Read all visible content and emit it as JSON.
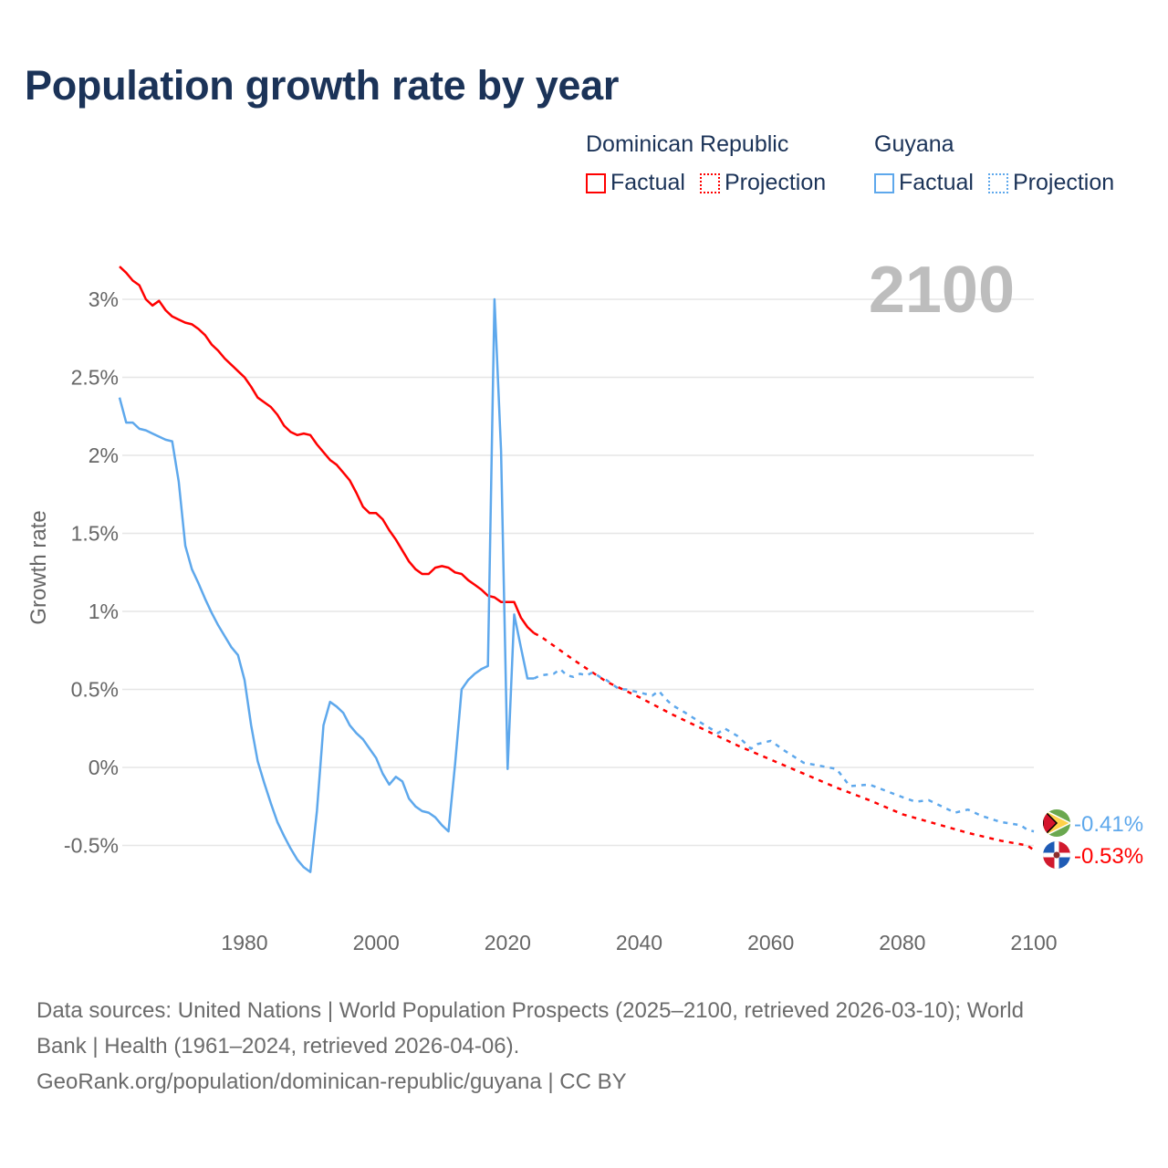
{
  "title": "Population growth rate by year",
  "legend": {
    "groups": [
      {
        "name": "Dominican Republic",
        "color": "#ff0000",
        "factual_label": "Factual",
        "projection_label": "Projection"
      },
      {
        "name": "Guyana",
        "color": "#5ea8ec",
        "factual_label": "Factual",
        "projection_label": "Projection"
      }
    ]
  },
  "year_display": "2100",
  "footer": {
    "line1": "Data sources: United Nations | World Population Prospects (2025–2100, retrieved 2026-03-10); World",
    "line2": "Bank | Health (1961–2024, retrieved 2026-04-06).",
    "line3": "GeoRank.org/population/dominican-republic/guyana | CC BY"
  },
  "chart_data": {
    "type": "line",
    "title": "Population growth rate by year",
    "xlabel": "",
    "ylabel": "Growth rate",
    "xlim": [
      1961,
      2100
    ],
    "ylim": [
      -0.9,
      3.3
    ],
    "grid": true,
    "x_ticks": [
      "1980",
      "2000",
      "2020",
      "2040",
      "2060",
      "2080",
      "2100"
    ],
    "x_tick_values": [
      1980,
      2000,
      2020,
      2040,
      2060,
      2080,
      2100
    ],
    "y_ticks": [
      "-0.5%",
      "0%",
      "0.5%",
      "1%",
      "1.5%",
      "2%",
      "2.5%",
      "3%"
    ],
    "y_tick_values": [
      -0.5,
      0,
      0.5,
      1,
      1.5,
      2,
      2.5,
      3
    ],
    "series": [
      {
        "name": "Dominican Republic",
        "kind": "Factual",
        "color": "#ff0000",
        "x": [
          1961,
          1962,
          1963,
          1964,
          1965,
          1966,
          1967,
          1968,
          1969,
          1970,
          1971,
          1972,
          1973,
          1974,
          1975,
          1976,
          1977,
          1978,
          1979,
          1980,
          1981,
          1982,
          1983,
          1984,
          1985,
          1986,
          1987,
          1988,
          1989,
          1990,
          1991,
          1992,
          1993,
          1994,
          1995,
          1996,
          1997,
          1998,
          1999,
          2000,
          2001,
          2002,
          2003,
          2004,
          2005,
          2006,
          2007,
          2008,
          2009,
          2010,
          2011,
          2012,
          2013,
          2014,
          2015,
          2016,
          2017,
          2018,
          2019,
          2020,
          2021,
          2022,
          2023,
          2024
        ],
        "y": [
          3.21,
          3.17,
          3.12,
          3.09,
          3.0,
          2.96,
          2.99,
          2.93,
          2.89,
          2.87,
          2.85,
          2.84,
          2.81,
          2.77,
          2.71,
          2.67,
          2.62,
          2.58,
          2.54,
          2.5,
          2.44,
          2.37,
          2.34,
          2.31,
          2.26,
          2.19,
          2.15,
          2.13,
          2.14,
          2.13,
          2.07,
          2.02,
          1.97,
          1.94,
          1.89,
          1.84,
          1.76,
          1.67,
          1.63,
          1.63,
          1.59,
          1.52,
          1.46,
          1.39,
          1.32,
          1.27,
          1.24,
          1.24,
          1.28,
          1.29,
          1.28,
          1.25,
          1.24,
          1.2,
          1.17,
          1.14,
          1.1,
          1.09,
          1.06,
          1.06,
          1.06,
          0.96,
          0.9,
          0.86
        ]
      },
      {
        "name": "Dominican Republic",
        "kind": "Projection",
        "color": "#ff0000",
        "x": [
          2024,
          2025,
          2030,
          2035,
          2040,
          2045,
          2050,
          2055,
          2060,
          2065,
          2070,
          2075,
          2080,
          2085,
          2090,
          2095,
          2099,
          2100
        ],
        "y": [
          0.86,
          0.84,
          0.69,
          0.55,
          0.45,
          0.34,
          0.24,
          0.14,
          0.05,
          -0.04,
          -0.13,
          -0.21,
          -0.3,
          -0.36,
          -0.42,
          -0.47,
          -0.5,
          -0.53
        ]
      },
      {
        "name": "Guyana",
        "kind": "Factual",
        "color": "#5ea8ec",
        "x": [
          1961,
          1962,
          1963,
          1964,
          1965,
          1966,
          1967,
          1968,
          1969,
          1970,
          1971,
          1972,
          1973,
          1974,
          1975,
          1976,
          1977,
          1978,
          1979,
          1980,
          1981,
          1982,
          1983,
          1984,
          1985,
          1986,
          1987,
          1988,
          1989,
          1990,
          1991,
          1992,
          1993,
          1994,
          1995,
          1996,
          1997,
          1998,
          1999,
          2000,
          2001,
          2002,
          2003,
          2004,
          2005,
          2006,
          2007,
          2008,
          2009,
          2010,
          2011,
          2012,
          2013,
          2014,
          2015,
          2016,
          2017,
          2018,
          2019,
          2020,
          2021,
          2022,
          2023,
          2024
        ],
        "y": [
          2.37,
          2.21,
          2.21,
          2.17,
          2.16,
          2.14,
          2.12,
          2.1,
          2.09,
          1.83,
          1.42,
          1.27,
          1.18,
          1.08,
          0.99,
          0.91,
          0.84,
          0.77,
          0.72,
          0.56,
          0.27,
          0.04,
          -0.1,
          -0.23,
          -0.35,
          -0.44,
          -0.52,
          -0.59,
          -0.64,
          -0.67,
          -0.28,
          0.27,
          0.42,
          0.39,
          0.35,
          0.27,
          0.22,
          0.18,
          0.12,
          0.06,
          -0.04,
          -0.11,
          -0.06,
          -0.09,
          -0.2,
          -0.25,
          -0.28,
          -0.29,
          -0.32,
          -0.37,
          -0.41,
          0.02,
          0.5,
          0.56,
          0.6,
          0.63,
          0.65,
          3.0,
          2.03,
          -0.01,
          0.98,
          0.77,
          0.57,
          0.57
        ]
      },
      {
        "name": "Guyana",
        "kind": "Projection",
        "color": "#5ea8ec",
        "x": [
          2024,
          2025,
          2027,
          2028,
          2029,
          2030,
          2031,
          2032,
          2033,
          2034,
          2035,
          2036,
          2037,
          2038,
          2040,
          2042,
          2043,
          2044,
          2045,
          2047,
          2050,
          2052,
          2053,
          2055,
          2057,
          2058,
          2060,
          2062,
          2065,
          2070,
          2072,
          2075,
          2080,
          2082,
          2084,
          2088,
          2090,
          2092,
          2095,
          2098,
          2099,
          2100
        ],
        "y": [
          0.57,
          0.59,
          0.6,
          0.63,
          0.59,
          0.58,
          0.6,
          0.59,
          0.61,
          0.58,
          0.56,
          0.53,
          0.5,
          0.5,
          0.48,
          0.46,
          0.49,
          0.44,
          0.4,
          0.35,
          0.27,
          0.22,
          0.25,
          0.2,
          0.12,
          0.15,
          0.17,
          0.11,
          0.03,
          -0.01,
          -0.12,
          -0.11,
          -0.19,
          -0.22,
          -0.21,
          -0.29,
          -0.27,
          -0.31,
          -0.35,
          -0.37,
          -0.4,
          -0.41
        ]
      }
    ],
    "end_labels": [
      {
        "country": "Guyana",
        "text": "-0.41%",
        "value": -0.41,
        "color": "#5ea8ec"
      },
      {
        "country": "Dominican Republic",
        "text": "-0.53%",
        "value": -0.53,
        "color": "#ff0000"
      }
    ]
  }
}
